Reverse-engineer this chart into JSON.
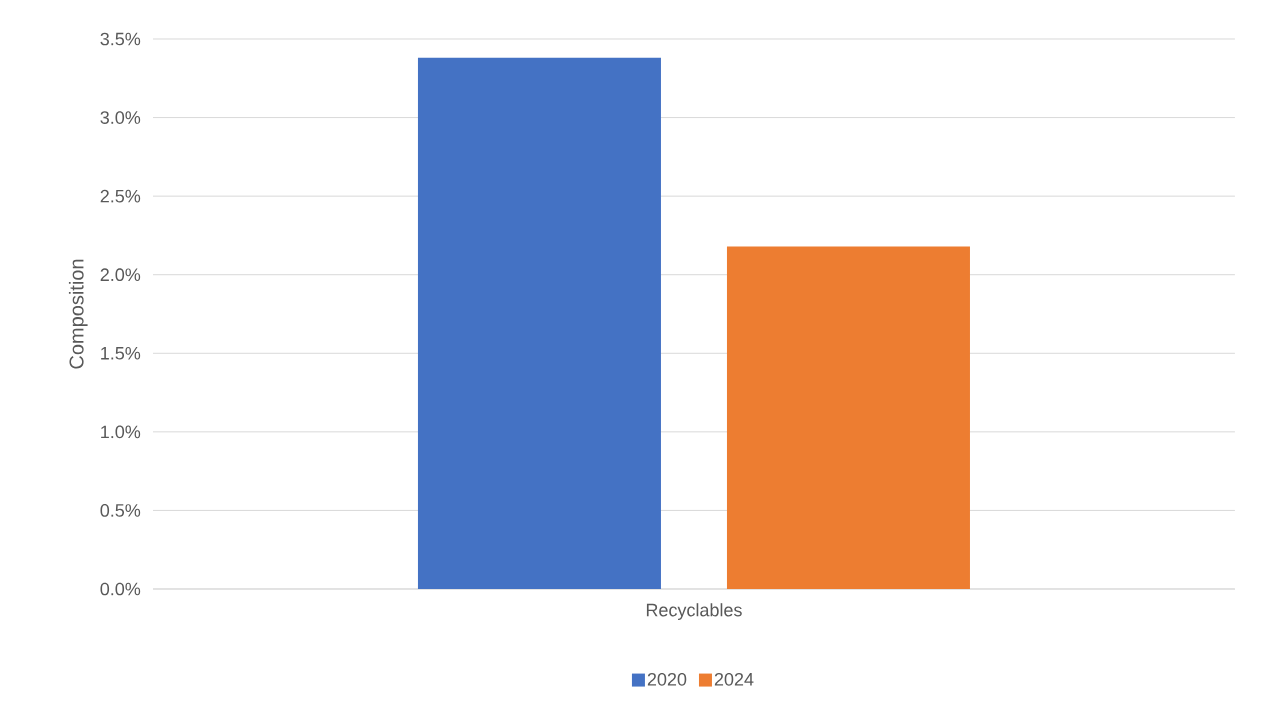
{
  "chart_data": {
    "type": "bar",
    "ylabel": "Composition",
    "categories": [
      "Recyclables"
    ],
    "series": [
      {
        "name": "2020",
        "color": "#4472c4",
        "values": [
          3.38
        ]
      },
      {
        "name": "2024",
        "color": "#ed7d31",
        "values": [
          2.18
        ]
      }
    ],
    "ylim": [
      0,
      3.5
    ],
    "yticks": [
      {
        "value": 0,
        "label": "0.0%"
      },
      {
        "value": 0.5,
        "label": "0.5%"
      },
      {
        "value": 1,
        "label": "1.0%"
      },
      {
        "value": 1.5,
        "label": "1.5%"
      },
      {
        "value": 2,
        "label": "2.0%"
      },
      {
        "value": 2.5,
        "label": "2.5%"
      },
      {
        "value": 3,
        "label": "3.0%"
      },
      {
        "value": 3.5,
        "label": "3.5%"
      }
    ],
    "grid": "y",
    "legend": "bottom"
  }
}
